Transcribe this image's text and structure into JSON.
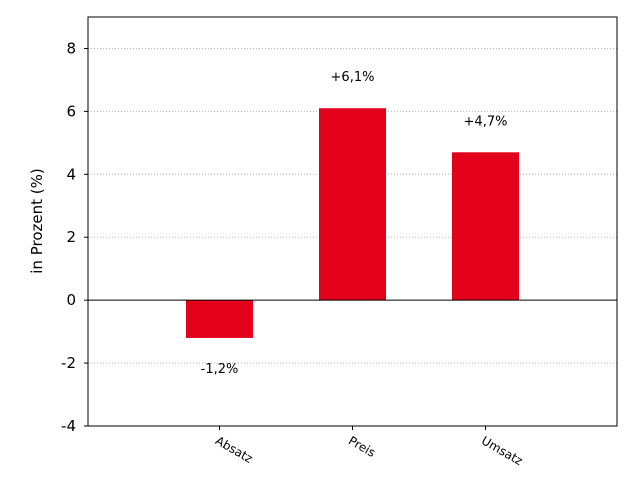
{
  "chart_data": {
    "type": "bar",
    "title": "",
    "xlabel": "",
    "ylabel": "in Prozent (%)",
    "ylim": [
      -4,
      9
    ],
    "yticks": [
      -4,
      -2,
      0,
      2,
      4,
      6,
      8
    ],
    "ytick_labels": [
      "-4",
      "-2",
      "0",
      "2",
      "4",
      "6",
      "8"
    ],
    "categories": [
      "Absatz",
      "Preis",
      "Umsatz"
    ],
    "values": [
      -1.2,
      6.1,
      4.7
    ],
    "data_labels": [
      "-1,2%",
      "+6,1%",
      "+4,7%"
    ],
    "grid": "horizontal dotted",
    "bar_color": "#e2001a",
    "grid_color": "#b0b0b0",
    "zero_line_color": "#000000",
    "x_tick_label_rotation": "rotated"
  }
}
